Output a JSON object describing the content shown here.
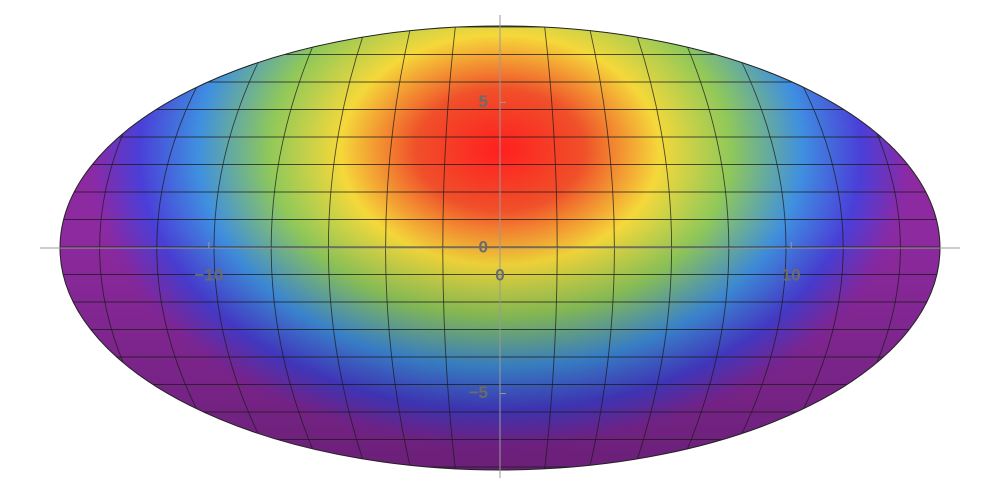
{
  "chart_data": {
    "type": "density",
    "xlim": [
      -15.8,
      15.8
    ],
    "ylim": [
      -7.9,
      8.0
    ],
    "xticks": [
      {
        "value": -10,
        "label": "−10"
      },
      0,
      10
    ],
    "yticks": [
      {
        "value": -5,
        "label": "−5"
      },
      0,
      5
    ]
  }
}
